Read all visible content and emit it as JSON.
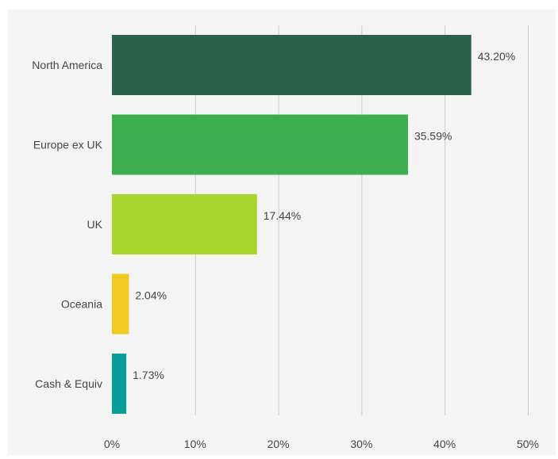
{
  "chart_data": {
    "type": "bar",
    "orientation": "horizontal",
    "categories": [
      "North America",
      "Europe ex UK",
      "UK",
      "Oceania",
      "Cash & Equiv"
    ],
    "values": [
      43.2,
      35.59,
      17.44,
      2.04,
      1.73
    ],
    "value_labels": [
      "43.20%",
      "35.59%",
      "17.44%",
      "2.04%",
      "1.73%"
    ],
    "colors": [
      "#2b614a",
      "#3cae4e",
      "#a8d62c",
      "#f1c922",
      "#069e98"
    ],
    "xlim": [
      0,
      50
    ],
    "ticks": [
      0,
      10,
      20,
      30,
      40,
      50
    ],
    "tick_labels": [
      "0%",
      "10%",
      "20%",
      "30%",
      "40%",
      "50%"
    ],
    "grid": true,
    "background": "#f4f4f4"
  }
}
